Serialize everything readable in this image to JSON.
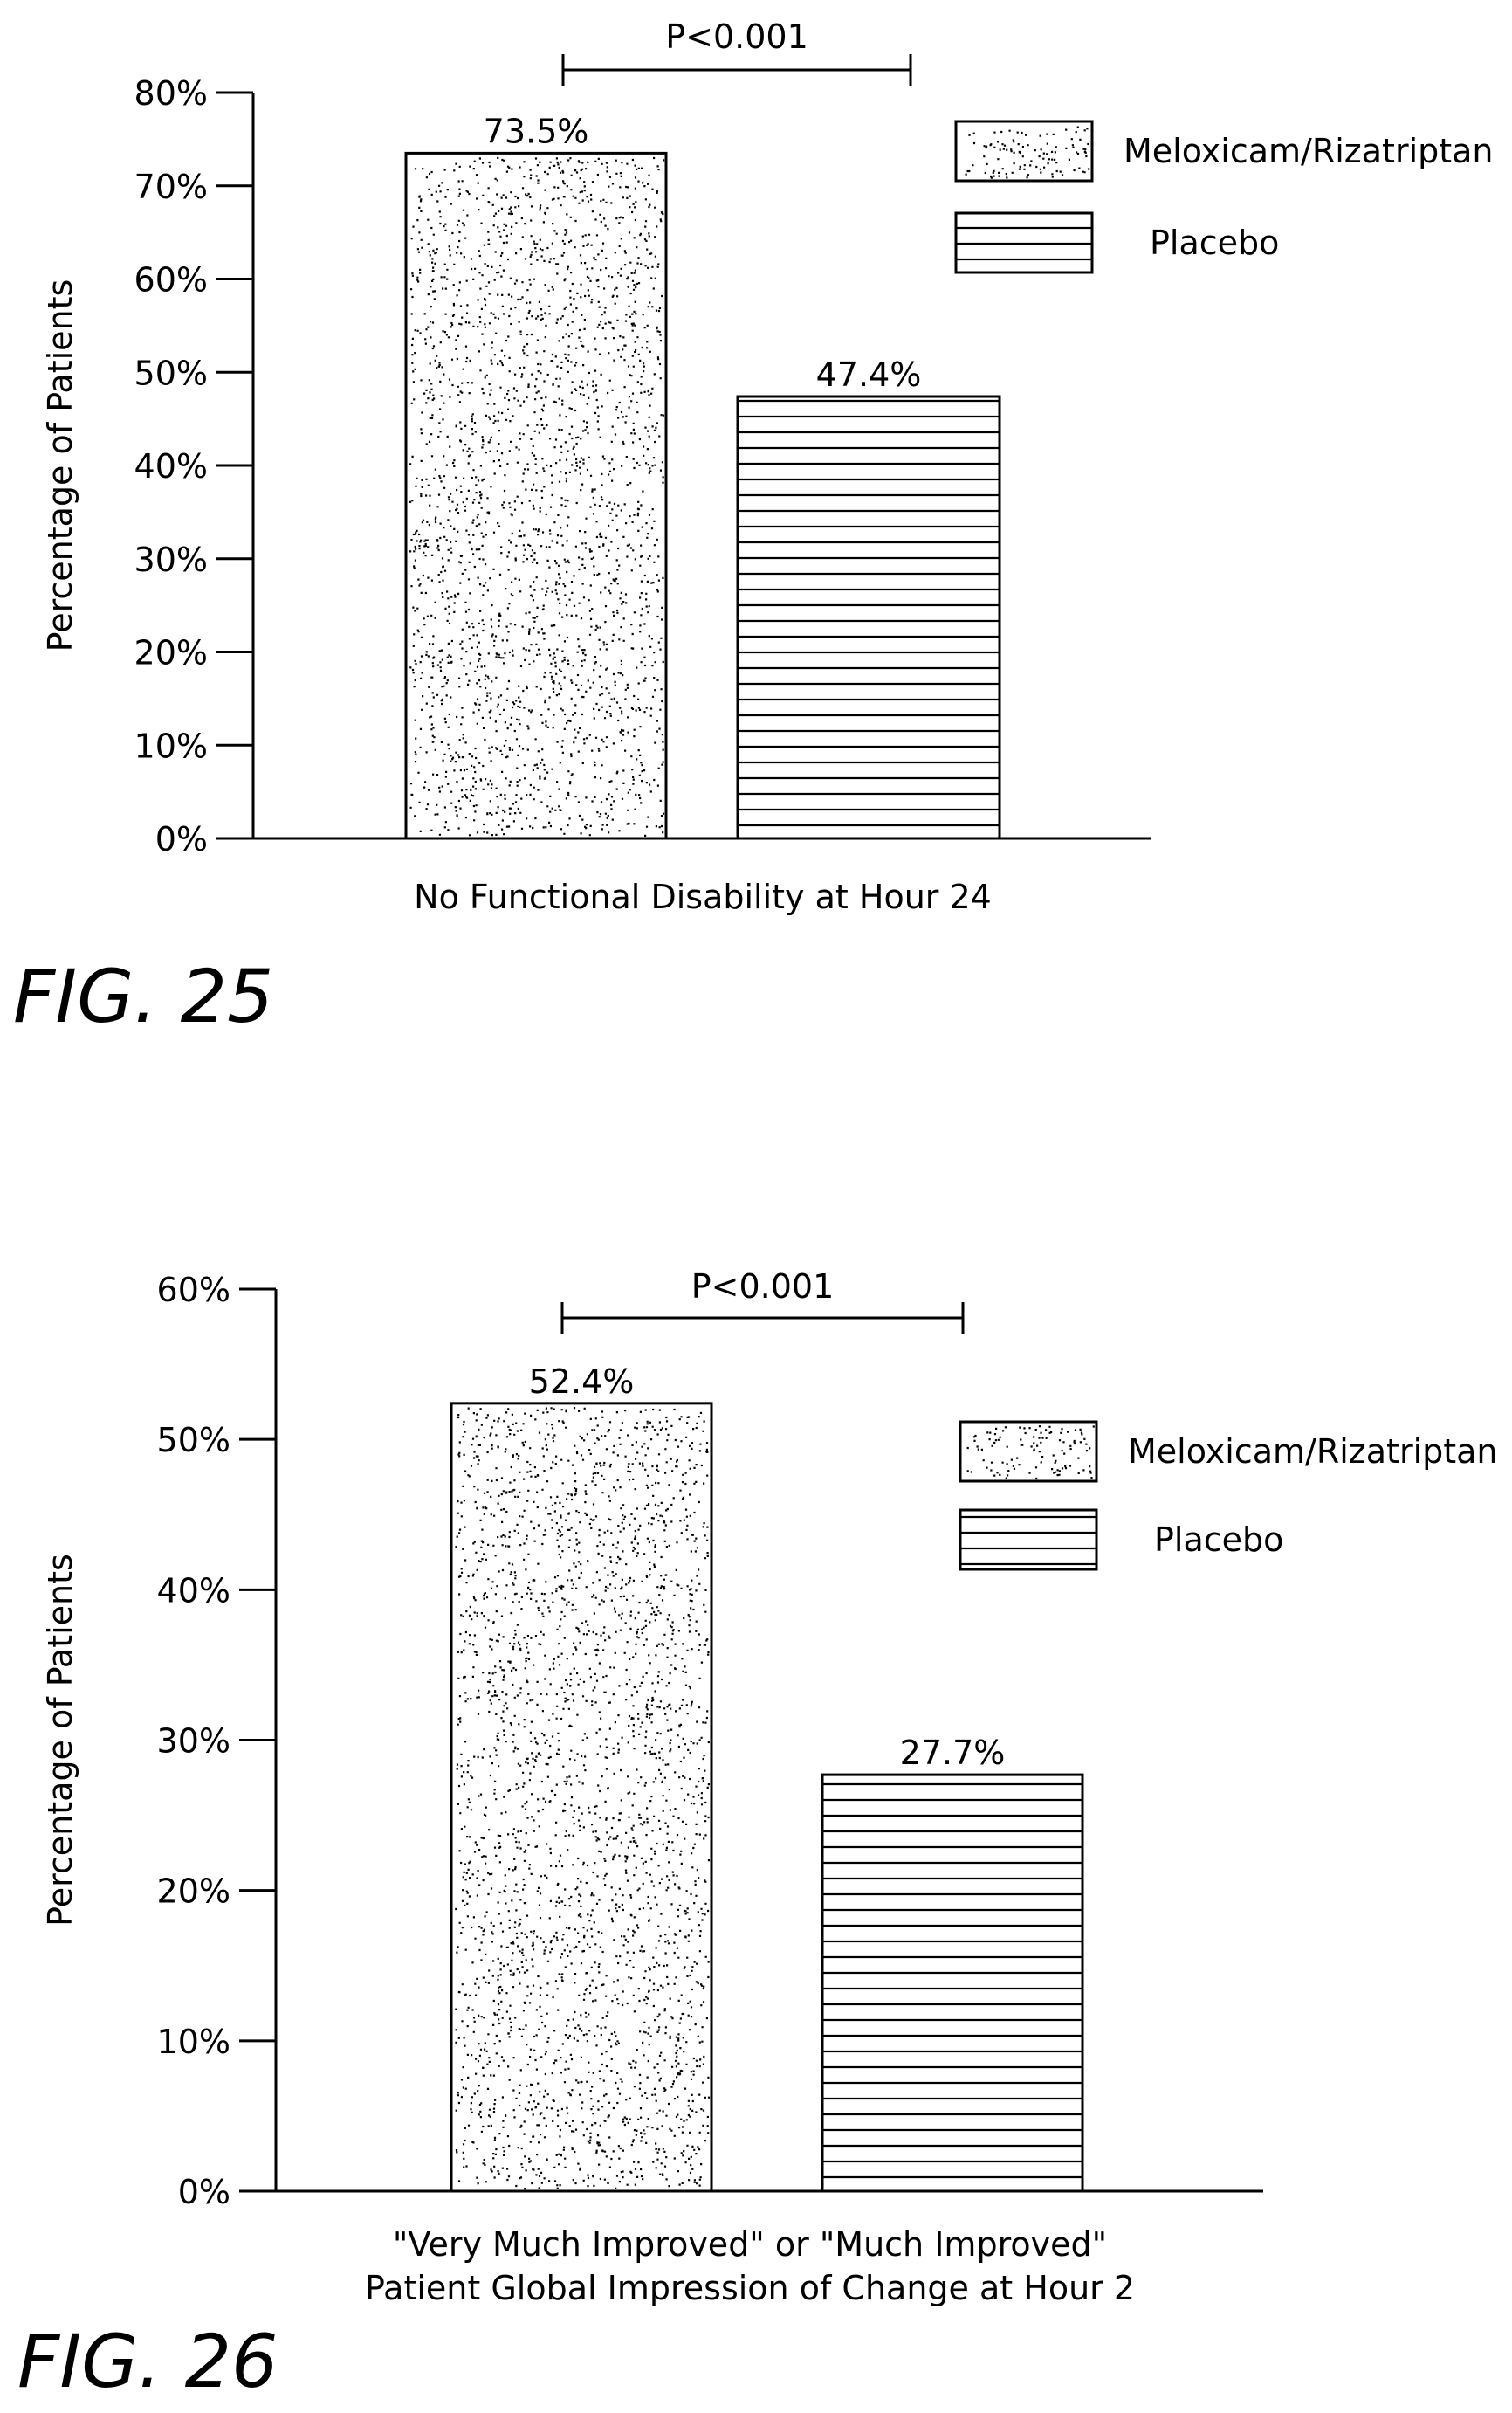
{
  "colors": {
    "ink": "#000000",
    "paper": "#ffffff"
  },
  "chart_data": [
    {
      "type": "bar",
      "figure_label": "FIG. 25",
      "title": "",
      "xlabel": "No Functional Disability at Hour 24",
      "xlabel_lines": [
        "No Functional Disability at Hour 24"
      ],
      "ylabel": "Percentage of Patients",
      "ylim": [
        0,
        80
      ],
      "yticks": [
        0,
        10,
        20,
        30,
        40,
        50,
        60,
        70,
        80
      ],
      "ytick_labels": [
        "0%",
        "10%",
        "20%",
        "30%",
        "40%",
        "50%",
        "60%",
        "70%",
        "80%"
      ],
      "grid": false,
      "legend_placement": "top-right",
      "series": [
        {
          "name": "Meloxicam/Rizatriptan",
          "value": 73.5,
          "label": "73.5%",
          "pattern": "stipple"
        },
        {
          "name": "Placebo",
          "value": 47.4,
          "label": "47.4%",
          "pattern": "horizontal-lines"
        }
      ],
      "annotation": "P<0.001"
    },
    {
      "type": "bar",
      "figure_label": "FIG. 26",
      "title": "",
      "xlabel": "\"Very Much Improved\" or \"Much Improved\" Patient Global Impression of Change at Hour 2",
      "xlabel_lines": [
        "\"Very Much Improved\" or \"Much Improved\"",
        "Patient Global Impression of Change at Hour 2"
      ],
      "ylabel": "Percentage of Patients",
      "ylim": [
        0,
        60
      ],
      "yticks": [
        0,
        10,
        20,
        30,
        40,
        50,
        60
      ],
      "ytick_labels": [
        "0%",
        "10%",
        "20%",
        "30%",
        "40%",
        "50%",
        "60%"
      ],
      "grid": false,
      "legend_placement": "top-right",
      "series": [
        {
          "name": "Meloxicam/Rizatriptan",
          "value": 52.4,
          "label": "52.4%",
          "pattern": "stipple"
        },
        {
          "name": "Placebo",
          "value": 27.7,
          "label": "27.7%",
          "pattern": "horizontal-lines"
        }
      ],
      "annotation": "P<0.001"
    }
  ]
}
